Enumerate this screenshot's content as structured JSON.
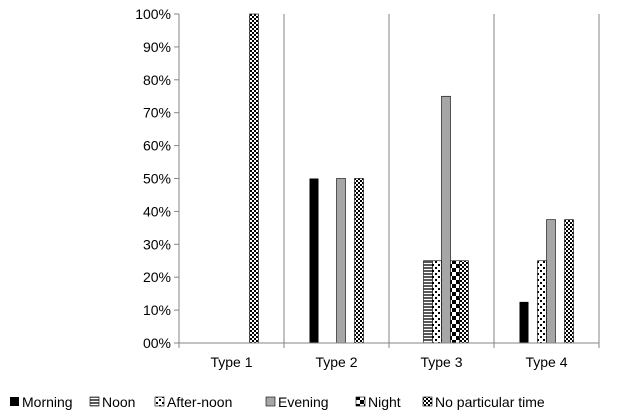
{
  "chart_data": {
    "type": "bar",
    "categories": [
      "Type 1",
      "Type 2",
      "Type 3",
      "Type 4"
    ],
    "series": [
      {
        "name": "Morning",
        "values": [
          0,
          50,
          0,
          12.5
        ],
        "pattern": "solid-black"
      },
      {
        "name": "Noon",
        "values": [
          0,
          0,
          25,
          0
        ],
        "pattern": "hlines"
      },
      {
        "name": "After-noon",
        "values": [
          0,
          0,
          25,
          25
        ],
        "pattern": "dots"
      },
      {
        "name": "Evening",
        "values": [
          0,
          50,
          75,
          37.5
        ],
        "pattern": "solid-gray"
      },
      {
        "name": "Night",
        "values": [
          0,
          0,
          25,
          0
        ],
        "pattern": "checker-large"
      },
      {
        "name": "No particular time",
        "values": [
          100,
          50,
          25,
          37.5
        ],
        "pattern": "checker-small"
      }
    ],
    "y_ticks": [
      "00%",
      "10%",
      "20%",
      "30%",
      "40%",
      "50%",
      "60%",
      "70%",
      "80%",
      "90%",
      "100%"
    ],
    "ylim": [
      0,
      100
    ],
    "title": "",
    "xlabel": "",
    "ylabel": "",
    "grid": "vertical-category-separators",
    "legend_position": "bottom",
    "colors": {
      "black": "#000000",
      "gray": "#a6a6a6",
      "axis": "#868686",
      "white": "#ffffff"
    }
  }
}
